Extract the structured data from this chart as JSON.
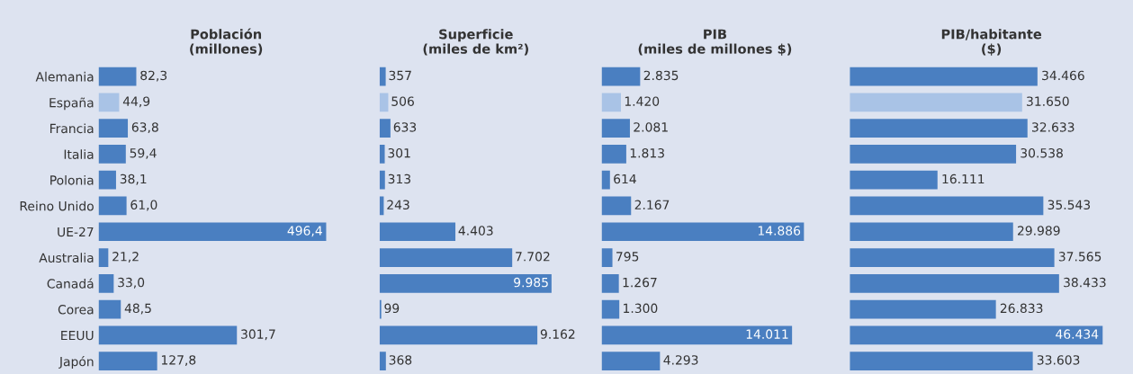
{
  "chart_data": [
    {
      "type": "bar",
      "orientation": "horizontal",
      "title": "Población\n(millones)",
      "categories": [
        "Alemania",
        "España",
        "Francia",
        "Italia",
        "Polonia",
        "Reino Unido",
        "UE-27",
        "Australia",
        "Canadá",
        "Corea",
        "EEUU",
        "Japón"
      ],
      "values": [
        82.3,
        44.9,
        63.8,
        59.4,
        38.1,
        61.0,
        496.4,
        21.2,
        33.0,
        48.5,
        301.7,
        127.8
      ],
      "value_labels": [
        "82,3",
        "44,9",
        "63,8",
        "59,4",
        "38,1",
        "61,0",
        "496,4",
        "21,2",
        "33,0",
        "48,5",
        "301,7",
        "127,8"
      ],
      "colors": [
        "#4a7fc1",
        "#a9c3e6",
        "#4a7fc1",
        "#4a7fc1",
        "#4a7fc1",
        "#4a7fc1",
        "#4a7fc1",
        "#4a7fc1",
        "#4a7fc1",
        "#4a7fc1",
        "#4a7fc1",
        "#4a7fc1"
      ]
    },
    {
      "type": "bar",
      "orientation": "horizontal",
      "title": "Superficie\n(miles de km²)",
      "categories": [
        null,
        null,
        null,
        null,
        null,
        null,
        null,
        null,
        null,
        null,
        null,
        null
      ],
      "values": [
        357,
        506,
        633,
        301,
        313,
        243,
        4403,
        7702,
        9985,
        99,
        9162,
        368
      ],
      "value_labels": [
        "357",
        "506",
        "633",
        "301",
        "313",
        "243",
        "4.403",
        "7.702",
        "9.985",
        "99",
        "9.162",
        "368"
      ],
      "colors": [
        "#4a7fc1",
        "#a9c3e6",
        "#4a7fc1",
        "#4a7fc1",
        "#4a7fc1",
        "#4a7fc1",
        "#4a7fc1",
        "#4a7fc1",
        "#4a7fc1",
        "#4a7fc1",
        "#4a7fc1",
        "#4a7fc1"
      ]
    },
    {
      "type": "bar",
      "orientation": "horizontal",
      "title": "PIB\n(miles de millones $)",
      "categories": [
        null,
        null,
        null,
        null,
        null,
        null,
        null,
        null,
        null,
        null,
        null,
        null
      ],
      "values": [
        2835,
        1420,
        2081,
        1813,
        614,
        2167,
        14886,
        795,
        1267,
        1300,
        14011,
        4293
      ],
      "value_labels": [
        "2.835",
        "1.420",
        "2.081",
        "1.813",
        "614",
        "2.167",
        "14.886",
        "795",
        "1.267",
        "1.300",
        "14.011",
        "4.293"
      ],
      "colors": [
        "#4a7fc1",
        "#a9c3e6",
        "#4a7fc1",
        "#4a7fc1",
        "#4a7fc1",
        "#4a7fc1",
        "#4a7fc1",
        "#4a7fc1",
        "#4a7fc1",
        "#4a7fc1",
        "#4a7fc1",
        "#4a7fc1"
      ]
    },
    {
      "type": "bar",
      "orientation": "horizontal",
      "title": "PIB/habitante\n($)",
      "categories": [
        null,
        null,
        null,
        null,
        null,
        null,
        null,
        null,
        null,
        null,
        null,
        null
      ],
      "values": [
        34466,
        31650,
        32633,
        30538,
        16111,
        35543,
        29989,
        37565,
        38433,
        26833,
        46434,
        33603
      ],
      "value_labels": [
        "34.466",
        "31.650",
        "32.633",
        "30.538",
        "16.111",
        "35.543",
        "29.989",
        "37.565",
        "38.433",
        "26.833",
        "46.434",
        "33.603"
      ],
      "colors": [
        "#4a7fc1",
        "#a9c3e6",
        "#4a7fc1",
        "#4a7fc1",
        "#4a7fc1",
        "#4a7fc1",
        "#4a7fc1",
        "#4a7fc1",
        "#4a7fc1",
        "#4a7fc1",
        "#4a7fc1",
        "#4a7fc1"
      ]
    }
  ]
}
